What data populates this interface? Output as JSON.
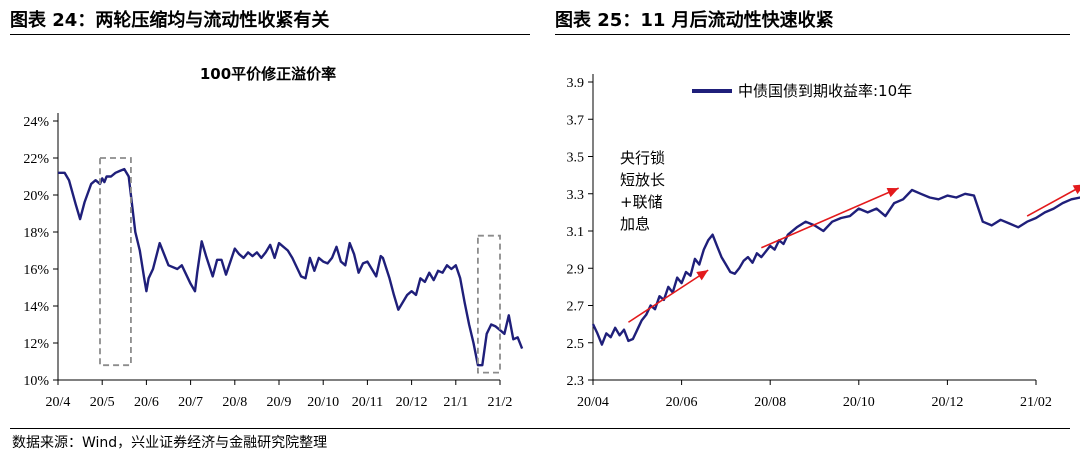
{
  "left_figure": {
    "label": "图表 24：两轮压缩均与流动性收紧有关"
  },
  "right_figure": {
    "label": "图表 25：11 月后流动性快速收紧"
  },
  "source": "数据来源：Wind，兴业证券经济与金融研究院整理",
  "chart_data": [
    {
      "type": "line",
      "title": "100平价修正溢价率",
      "xlabel": "",
      "ylabel": "",
      "ylim": [
        10,
        24
      ],
      "yticks": [
        "10%",
        "12%",
        "14%",
        "16%",
        "18%",
        "20%",
        "22%",
        "24%"
      ],
      "xticks": [
        "20/4",
        "20/5",
        "20/6",
        "20/7",
        "20/8",
        "20/9",
        "20/10",
        "20/11",
        "20/12",
        "21/1",
        "21/2"
      ],
      "series": [
        {
          "name": "100平价修正溢价率",
          "color": "#1f1f7a",
          "x": [
            0,
            0.15,
            0.25,
            0.4,
            0.5,
            0.6,
            0.75,
            0.85,
            0.95,
            1.0,
            1.05,
            1.1,
            1.2,
            1.3,
            1.4,
            1.5,
            1.6,
            1.65,
            1.75,
            1.85,
            1.95,
            2.0,
            2.05,
            2.15,
            2.3,
            2.5,
            2.7,
            2.8,
            3.0,
            3.1,
            3.15,
            3.25,
            3.35,
            3.5,
            3.6,
            3.7,
            3.8,
            4.0,
            4.1,
            4.2,
            4.3,
            4.4,
            4.5,
            4.6,
            4.7,
            4.8,
            4.9,
            5.0,
            5.1,
            5.2,
            5.3,
            5.4,
            5.5,
            5.6,
            5.7,
            5.8,
            5.9,
            6.0,
            6.1,
            6.2,
            6.3,
            6.4,
            6.5,
            6.6,
            6.7,
            6.8,
            6.9,
            7.0,
            7.1,
            7.2,
            7.3,
            7.35,
            7.5,
            7.6,
            7.7,
            7.8,
            7.9,
            8.0,
            8.1,
            8.2,
            8.3,
            8.4,
            8.5,
            8.6,
            8.7,
            8.8,
            8.9,
            9.0,
            9.1,
            9.2,
            9.3,
            9.4,
            9.5,
            9.6,
            9.7,
            9.8,
            9.9,
            10.0,
            10.1,
            10.2,
            10.3,
            10.4,
            10.5
          ],
          "values": [
            21.2,
            21.2,
            20.8,
            19.5,
            18.7,
            19.6,
            20.6,
            20.8,
            20.6,
            20.9,
            20.7,
            21.0,
            21.0,
            21.2,
            21.3,
            21.4,
            21.0,
            20.0,
            18.0,
            17.0,
            15.5,
            14.8,
            15.5,
            16.0,
            17.4,
            16.2,
            16.0,
            16.2,
            15.2,
            14.8,
            15.8,
            17.5,
            16.7,
            15.6,
            16.5,
            16.5,
            15.7,
            17.1,
            16.8,
            16.6,
            16.9,
            16.7,
            16.9,
            16.6,
            16.9,
            17.3,
            16.6,
            17.4,
            17.2,
            17.0,
            16.6,
            16.1,
            15.6,
            15.5,
            16.6,
            15.9,
            16.6,
            16.4,
            16.3,
            16.6,
            17.2,
            16.4,
            16.2,
            17.4,
            16.8,
            15.8,
            16.3,
            16.4,
            16.0,
            15.6,
            16.7,
            16.6,
            15.5,
            14.6,
            13.8,
            14.2,
            14.6,
            14.8,
            14.6,
            15.5,
            15.3,
            15.8,
            15.4,
            15.9,
            15.8,
            16.2,
            16.0,
            16.2,
            15.5,
            14.2,
            13.0,
            12.0,
            10.8,
            10.8,
            12.5,
            13.0,
            12.9,
            12.7,
            12.5,
            13.5,
            12.2,
            12.3,
            11.7
          ]
        }
      ],
      "annotations": [
        {
          "type": "dashed-rect",
          "x_range": [
            0.95,
            1.65
          ],
          "y_range": [
            10.8,
            22.0
          ]
        },
        {
          "type": "dashed-rect",
          "x_range": [
            9.5,
            10.0
          ],
          "y_range": [
            10.4,
            17.8
          ]
        }
      ]
    },
    {
      "type": "line",
      "title": "",
      "xlabel": "",
      "ylabel": "",
      "ylim": [
        2.3,
        3.9
      ],
      "yticks": [
        "2.3",
        "2.5",
        "2.7",
        "2.9",
        "3.1",
        "3.3",
        "3.5",
        "3.7",
        "3.9"
      ],
      "xticks": [
        "20/04",
        "20/06",
        "20/08",
        "20/10",
        "20/12",
        "21/02"
      ],
      "series": [
        {
          "name": "中债国债到期收益率:10年",
          "color": "#1f1f7a",
          "x": [
            0,
            0.05,
            0.1,
            0.15,
            0.2,
            0.25,
            0.3,
            0.35,
            0.4,
            0.45,
            0.5,
            0.55,
            0.6,
            0.65,
            0.7,
            0.75,
            0.8,
            0.85,
            0.9,
            0.95,
            1.0,
            1.05,
            1.1,
            1.15,
            1.2,
            1.25,
            1.3,
            1.35,
            1.4,
            1.45,
            1.5,
            1.55,
            1.6,
            1.65,
            1.7,
            1.75,
            1.8,
            1.85,
            1.9,
            1.95,
            2.0,
            2.05,
            2.1,
            2.15,
            2.2,
            2.3,
            2.4,
            2.5,
            2.6,
            2.7,
            2.8,
            2.9,
            3.0,
            3.1,
            3.2,
            3.3,
            3.4,
            3.5,
            3.6,
            3.7,
            3.8,
            3.9,
            4.0,
            4.1,
            4.2,
            4.3,
            4.4,
            4.5,
            4.6,
            4.7,
            4.8,
            4.9,
            5.0,
            5.1,
            5.2,
            5.3,
            5.4,
            5.5,
            5.6
          ],
          "values": [
            2.6,
            2.55,
            2.49,
            2.55,
            2.53,
            2.58,
            2.54,
            2.57,
            2.51,
            2.52,
            2.57,
            2.62,
            2.65,
            2.7,
            2.68,
            2.75,
            2.73,
            2.8,
            2.77,
            2.85,
            2.82,
            2.88,
            2.86,
            2.95,
            2.92,
            3.0,
            3.05,
            3.08,
            3.02,
            2.96,
            2.92,
            2.88,
            2.87,
            2.9,
            2.94,
            2.96,
            2.93,
            2.98,
            2.96,
            2.99,
            3.02,
            3.0,
            3.05,
            3.03,
            3.08,
            3.12,
            3.15,
            3.13,
            3.1,
            3.15,
            3.17,
            3.18,
            3.22,
            3.2,
            3.22,
            3.18,
            3.25,
            3.27,
            3.32,
            3.3,
            3.28,
            3.27,
            3.29,
            3.28,
            3.3,
            3.29,
            3.15,
            3.13,
            3.16,
            3.14,
            3.12,
            3.15,
            3.17,
            3.2,
            3.22,
            3.25,
            3.27,
            3.28,
            3.25
          ]
        }
      ],
      "annotations": [
        {
          "type": "text",
          "lines": [
            "央行锁",
            "短放长",
            "+联储",
            "加息"
          ]
        },
        {
          "type": "arrow",
          "color": "#e31a1c",
          "from": [
            0.4,
            2.61
          ],
          "to": [
            1.3,
            2.89
          ]
        },
        {
          "type": "arrow",
          "color": "#e31a1c",
          "from": [
            1.9,
            3.01
          ],
          "to": [
            3.45,
            3.33
          ]
        },
        {
          "type": "arrow",
          "color": "#e31a1c",
          "from": [
            4.9,
            3.18
          ],
          "to": [
            5.55,
            3.35
          ]
        }
      ]
    }
  ]
}
